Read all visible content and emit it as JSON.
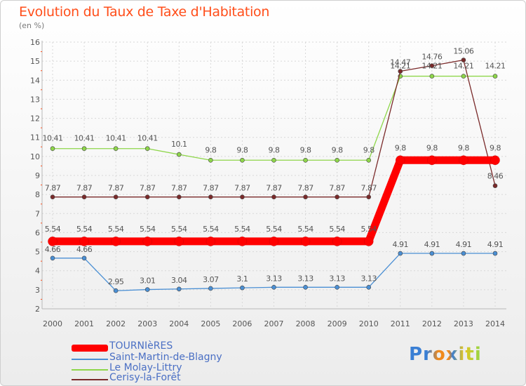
{
  "title": "Evolution du Taux de Taxe d'Habitation",
  "subtitle": "(en %)",
  "logo": "Proxiti",
  "chart_data": {
    "type": "line",
    "title": "Evolution du Taux de Taxe d'Habitation",
    "ylabel": "(en %)",
    "xlabel": "",
    "ylim": [
      2,
      16
    ],
    "yticks": [
      2,
      3,
      4,
      5,
      6,
      7,
      8,
      9,
      10,
      11,
      12,
      13,
      14,
      15,
      16
    ],
    "categories": [
      "2000",
      "2001",
      "2002",
      "2003",
      "2004",
      "2005",
      "2006",
      "2007",
      "2008",
      "2009",
      "2010",
      "2011",
      "2012",
      "2013",
      "2014"
    ],
    "grid": true,
    "legend": "bottom-left",
    "series": [
      {
        "name": "TOURNIèRES",
        "color": "#ff0000",
        "values": [
          5.54,
          5.54,
          5.54,
          5.54,
          5.54,
          5.54,
          5.54,
          5.54,
          5.54,
          5.54,
          5.54,
          9.8,
          9.8,
          9.8,
          9.8
        ],
        "labels": [
          "5.54",
          "5.54",
          "5.54",
          "5.54",
          "5.54",
          "5.54",
          "5.54",
          "5.54",
          "5.54",
          "5.54",
          "5.54",
          "9.8",
          "9.8",
          "9.8",
          "9.8"
        ]
      },
      {
        "name": "Saint-Martin-de-Blagny",
        "color": "#4a8fd4",
        "values": [
          4.66,
          4.66,
          2.95,
          3.01,
          3.04,
          3.07,
          3.1,
          3.13,
          3.13,
          3.13,
          3.13,
          4.91,
          4.91,
          4.91,
          4.91
        ],
        "labels": [
          "4.66",
          "4.66",
          "2.95",
          "3.01",
          "3.04",
          "3.07",
          "3.1",
          "3.13",
          "3.13",
          "3.13",
          "3.13",
          "4.91",
          "4.91",
          "4.91",
          "4.91"
        ]
      },
      {
        "name": "Le Molay-Littry",
        "color": "#8ed64a",
        "values": [
          10.41,
          10.41,
          10.41,
          10.41,
          10.1,
          9.8,
          9.8,
          9.8,
          9.8,
          9.8,
          9.8,
          14.21,
          14.21,
          14.21,
          14.21
        ],
        "labels": [
          "10.41",
          "10.41",
          "10.41",
          "10.41",
          "10.1",
          "9.8",
          "9.8",
          "9.8",
          "9.8",
          "9.8",
          "9.8",
          "14.21",
          "14.21",
          "14.21",
          "14.21"
        ]
      },
      {
        "name": "Cerisy-la-Forêt",
        "color": "#7a2a2a",
        "values": [
          7.87,
          7.87,
          7.87,
          7.87,
          7.87,
          7.87,
          7.87,
          7.87,
          7.87,
          7.87,
          7.87,
          14.47,
          14.76,
          15.06,
          8.46
        ],
        "labels": [
          "7.87",
          "7.87",
          "7.87",
          "7.87",
          "7.87",
          "7.87",
          "7.87",
          "7.87",
          "7.87",
          "7.87",
          "7.87",
          "14.47",
          "14.76",
          "15.06",
          "8.46"
        ]
      }
    ]
  }
}
